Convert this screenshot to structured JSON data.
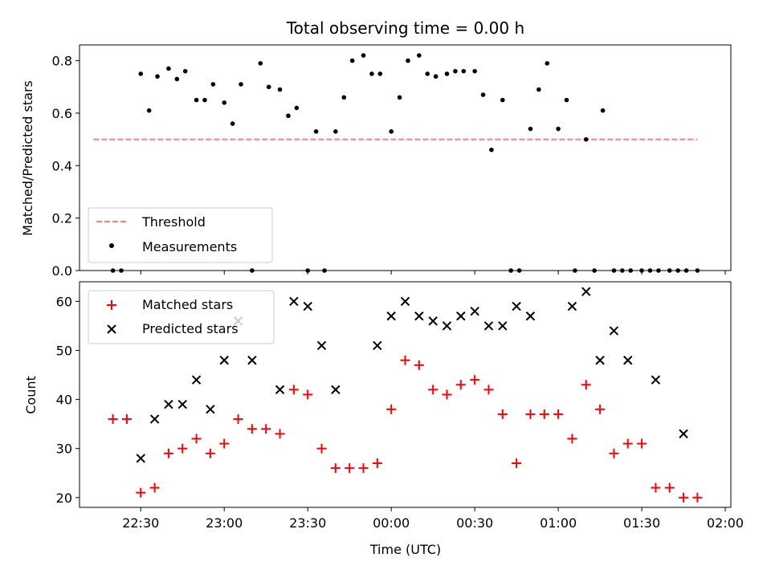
{
  "chart_data": [
    {
      "type": "scatter",
      "title": "Total observing time = 0.00 h",
      "xlabel": "",
      "ylabel": "Matched/Predicted stars",
      "ylim": [
        0,
        0.86
      ],
      "yticks": [
        0.0,
        0.2,
        0.4,
        0.6,
        0.8
      ],
      "ytick_labels": [
        "0.0",
        "0.2",
        "0.4",
        "0.6",
        "0.8"
      ],
      "xlim": [
        "22:08",
        "02:02"
      ],
      "xticks": [
        "22:30",
        "23:00",
        "23:30",
        "00:00",
        "00:30",
        "01:00",
        "01:30",
        "02:00"
      ],
      "xtick_labels": [
        "",
        "",
        "",
        "",
        "",
        "",
        "",
        ""
      ],
      "legend": {
        "position": "lower-left",
        "entries": [
          "Threshold",
          "Measurements"
        ]
      },
      "grid": false,
      "series": [
        {
          "name": "Threshold",
          "style": "dashed-line",
          "color": "#ff7f7f",
          "x": [
            "22:13",
            "01:50"
          ],
          "y": [
            0.5,
            0.5
          ]
        },
        {
          "name": "Measurements",
          "style": "dot",
          "color": "#000000",
          "x": [
            "22:20",
            "22:23",
            "22:30",
            "22:33",
            "22:36",
            "22:40",
            "22:43",
            "22:46",
            "22:50",
            "22:53",
            "22:56",
            "23:00",
            "23:03",
            "23:06",
            "23:10",
            "23:13",
            "23:16",
            "23:20",
            "23:23",
            "23:26",
            "23:30",
            "23:33",
            "23:36",
            "23:40",
            "23:43",
            "23:46",
            "23:50",
            "23:53",
            "23:56",
            "00:00",
            "00:03",
            "00:06",
            "00:10",
            "00:13",
            "00:16",
            "00:20",
            "00:23",
            "00:26",
            "00:30",
            "00:33",
            "00:36",
            "00:40",
            "00:43",
            "00:46",
            "00:50",
            "00:53",
            "00:56",
            "01:00",
            "01:03",
            "01:06",
            "01:10",
            "01:13",
            "01:16",
            "01:20",
            "01:23",
            "01:26",
            "01:30",
            "01:33",
            "01:36",
            "01:40",
            "01:43",
            "01:46",
            "01:50"
          ],
          "y": [
            0,
            0,
            0.75,
            0.61,
            0.74,
            0.77,
            0.73,
            0.76,
            0.65,
            0.65,
            0.71,
            0.64,
            0.56,
            0.71,
            0.0,
            0.79,
            0.7,
            0.69,
            0.59,
            0.62,
            0,
            0.53,
            0,
            0.53,
            0.66,
            0.8,
            0.82,
            0.75,
            0.75,
            0.53,
            0.66,
            0.8,
            0.82,
            0.75,
            0.74,
            0.75,
            0.76,
            0.76,
            0.76,
            0.67,
            0.46,
            0.65,
            0,
            0,
            0.54,
            0.69,
            0.79,
            0.54,
            0.65,
            0,
            0.5,
            0,
            0.61,
            0,
            0,
            0,
            0,
            0,
            0,
            0,
            0,
            0,
            0
          ]
        }
      ]
    },
    {
      "type": "scatter",
      "title": "",
      "xlabel": "Time (UTC)",
      "ylabel": "Count",
      "ylim": [
        18,
        64
      ],
      "yticks": [
        20,
        30,
        40,
        50,
        60
      ],
      "ytick_labels": [
        "20",
        "30",
        "40",
        "50",
        "60"
      ],
      "xlim": [
        "22:08",
        "02:02"
      ],
      "xticks": [
        "22:30",
        "23:00",
        "23:30",
        "00:00",
        "00:30",
        "01:00",
        "01:30",
        "02:00"
      ],
      "xtick_labels": [
        "22:30",
        "23:00",
        "23:30",
        "00:00",
        "00:30",
        "01:00",
        "01:30",
        "02:00"
      ],
      "legend": {
        "position": "upper-left",
        "entries": [
          "Matched stars",
          "Predicted stars"
        ]
      },
      "grid": false,
      "series": [
        {
          "name": "Matched stars",
          "style": "plus",
          "color": "#ff0000",
          "x": [
            "22:20",
            "22:25",
            "22:30",
            "22:35",
            "22:40",
            "22:45",
            "22:50",
            "22:55",
            "23:00",
            "23:05",
            "23:10",
            "23:15",
            "23:20",
            "23:25",
            "23:30",
            "23:35",
            "23:40",
            "23:45",
            "23:50",
            "23:55",
            "00:00",
            "00:05",
            "00:10",
            "00:15",
            "00:20",
            "00:25",
            "00:30",
            "00:35",
            "00:40",
            "00:45",
            "00:50",
            "00:55",
            "01:00",
            "01:05",
            "01:10",
            "01:15",
            "01:20",
            "01:25",
            "01:30",
            "01:35",
            "01:40",
            "01:45",
            "01:50"
          ],
          "y": [
            36,
            36,
            21,
            22,
            29,
            30,
            32,
            29,
            31,
            36,
            34,
            34,
            33,
            42,
            41,
            30,
            26,
            26,
            26,
            27,
            38,
            48,
            47,
            42,
            41,
            43,
            44,
            42,
            37,
            27,
            37,
            37,
            37,
            32,
            43,
            38,
            29,
            31,
            31,
            22,
            22,
            20,
            20
          ]
        },
        {
          "name": "Predicted stars",
          "style": "x",
          "color": "#000000",
          "x": [
            "22:30",
            "22:35",
            "22:40",
            "22:45",
            "22:50",
            "22:55",
            "23:00",
            "23:05",
            "23:10",
            "23:20",
            "23:25",
            "23:30",
            "23:35",
            "23:40",
            "23:55",
            "00:00",
            "00:05",
            "00:10",
            "00:15",
            "00:20",
            "00:25",
            "00:30",
            "00:35",
            "00:40",
            "00:45",
            "00:50",
            "01:05",
            "01:10",
            "01:15",
            "01:20",
            "01:25",
            "01:35",
            "01:45"
          ],
          "y": [
            28,
            36,
            39,
            39,
            44,
            38,
            48,
            56,
            48,
            42,
            60,
            59,
            51,
            42,
            51,
            57,
            60,
            57,
            56,
            55,
            57,
            58,
            55,
            55,
            59,
            57,
            59,
            62,
            48,
            54,
            48,
            44,
            33
          ]
        }
      ]
    }
  ]
}
